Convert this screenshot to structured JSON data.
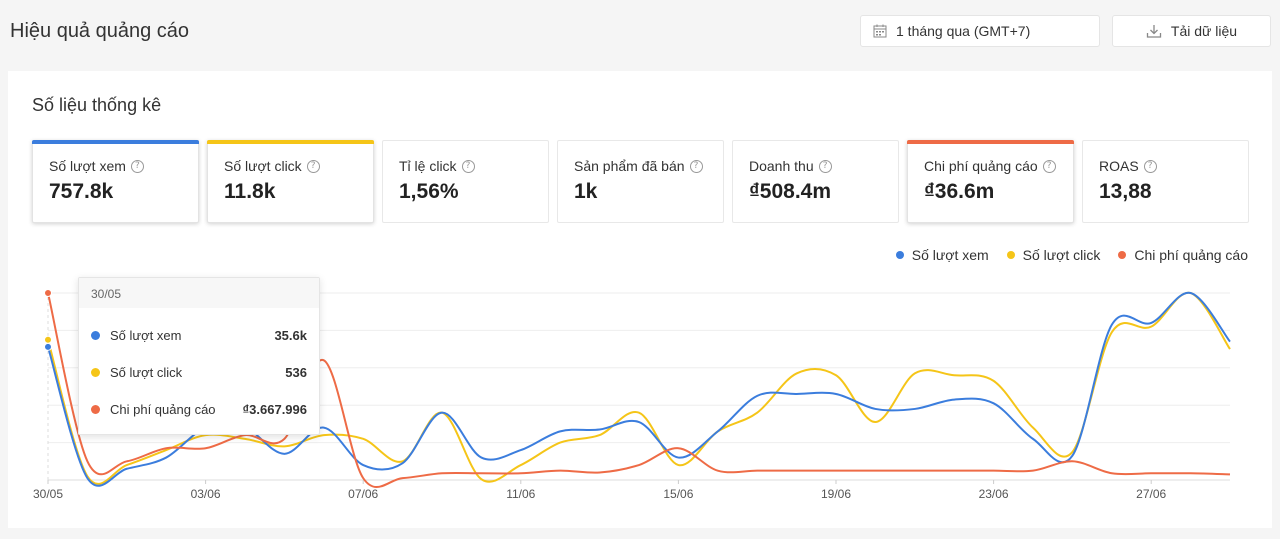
{
  "header": {
    "title": "Hiệu quả quảng cáo",
    "date_range": "1 tháng qua (GMT+7)",
    "download_label": "Tải dữ liệu"
  },
  "stats_section": {
    "title": "Số liệu thống kê",
    "cards": [
      {
        "label": "Số lượt xem",
        "value": "757.8k",
        "bar_color": "#3b7ddd",
        "active": true
      },
      {
        "label": "Số lượt click",
        "value": "11.8k",
        "bar_color": "#f5c518",
        "active": true
      },
      {
        "label": "Tỉ lệ click",
        "value": "1,56%",
        "bar_color": "",
        "active": false
      },
      {
        "label": "Sản phẩm đã bán",
        "value": "1k",
        "bar_color": "",
        "active": false
      },
      {
        "label": "Doanh thu",
        "value": "₫508.4m",
        "bar_color": "",
        "active": false
      },
      {
        "label": "Chi phí quảng cáo",
        "value": "₫36.6m",
        "bar_color": "#ee6b46",
        "active": true
      },
      {
        "label": "ROAS",
        "value": "13,88",
        "bar_color": "",
        "active": false
      }
    ]
  },
  "tooltip": {
    "date": "30/05",
    "rows": [
      {
        "name": "Số lượt xem",
        "value": "35.6k",
        "color": "#3b7ddd"
      },
      {
        "name": "Số lượt click",
        "value": "536",
        "color": "#f5c518"
      },
      {
        "name": "Chi phí quảng cáo",
        "value": "₫3.667.996",
        "color": "#ee6b46"
      }
    ]
  },
  "chart_data": {
    "type": "line",
    "x": [
      "30/05",
      "31/05",
      "01/06",
      "02/06",
      "03/06",
      "04/06",
      "05/06",
      "06/06",
      "07/06",
      "08/06",
      "09/06",
      "10/06",
      "11/06",
      "12/06",
      "13/06",
      "14/06",
      "15/06",
      "16/06",
      "17/06",
      "18/06",
      "19/06",
      "20/06",
      "21/06",
      "22/06",
      "23/06",
      "24/06",
      "25/06",
      "26/06",
      "27/06",
      "28/06",
      "29/06"
    ],
    "x_tick_labels": [
      "30/05",
      "03/06",
      "07/06",
      "11/06",
      "15/06",
      "19/06",
      "23/06",
      "27/06"
    ],
    "grid": true,
    "legend_position": "top-right",
    "series": [
      {
        "name": "Số lượt xem",
        "color": "#3b7ddd",
        "axis_max": 50,
        "values": [
          35.6,
          0.5,
          3,
          6,
          14,
          14,
          7,
          14,
          4,
          4.5,
          18,
          6,
          8,
          13,
          13.5,
          15.5,
          6,
          13,
          22.5,
          23,
          23,
          19,
          19,
          21.5,
          20.5,
          11,
          6.5,
          41.5,
          42,
          50,
          37
        ]
      },
      {
        "name": "Số lượt click",
        "color": "#f5c518",
        "axis_max": 50,
        "values": [
          37.5,
          1,
          4,
          8,
          12,
          11,
          9,
          12,
          11,
          5,
          18,
          0.2,
          4,
          10,
          12,
          18,
          4,
          13,
          18,
          28.5,
          28,
          15.5,
          28.5,
          28,
          26.5,
          14,
          7.5,
          39.5,
          41,
          50,
          35
        ]
      },
      {
        "name": "Chi phí quảng cáo",
        "color": "#ee6b46",
        "axis_max": 50,
        "values": [
          50,
          5,
          5,
          8.5,
          8.5,
          12,
          11,
          32,
          0.5,
          0.5,
          1.8,
          1.8,
          1.8,
          2.5,
          2,
          4,
          8.5,
          2.5,
          2.5,
          2.5,
          2.5,
          2.5,
          2.5,
          2.5,
          2.5,
          2.5,
          5,
          1.8,
          1.8,
          1.8,
          1.5
        ]
      }
    ]
  }
}
